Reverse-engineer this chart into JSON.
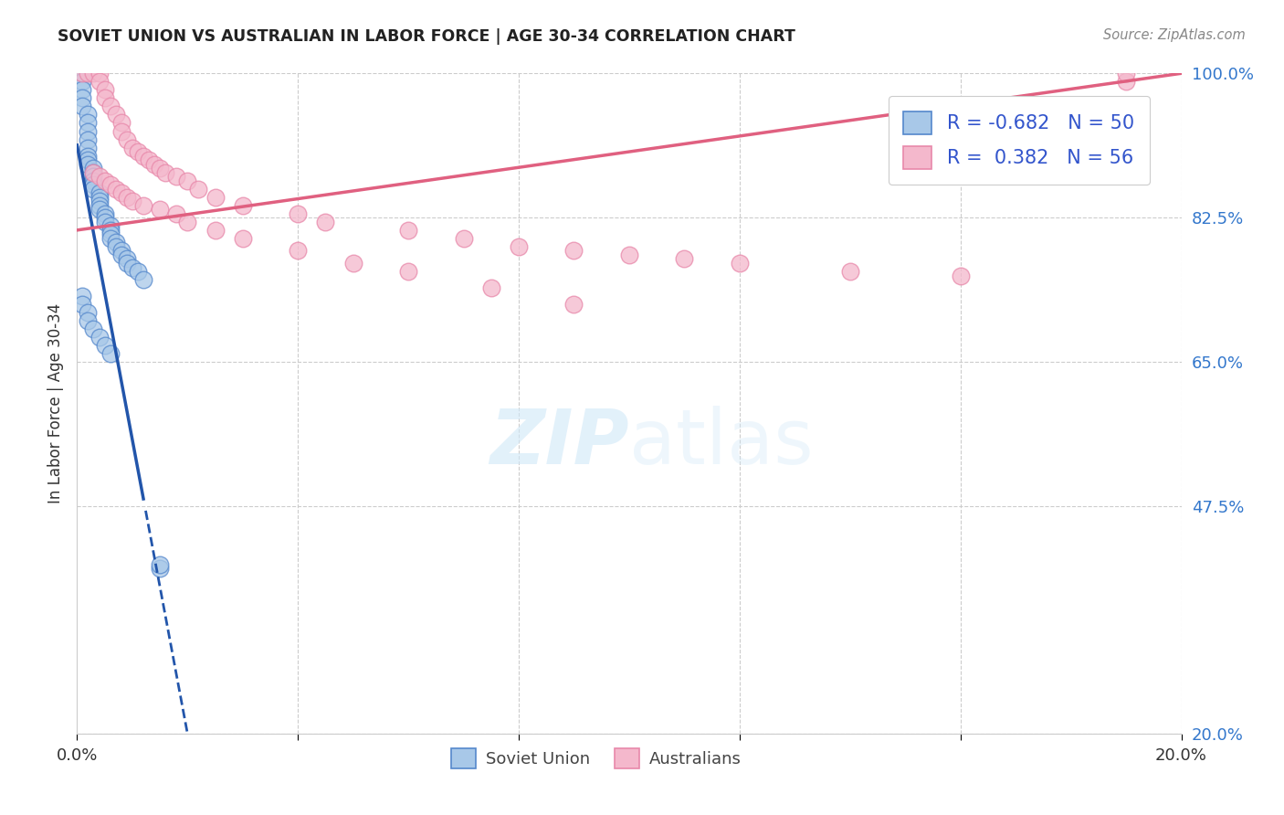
{
  "title": "SOVIET UNION VS AUSTRALIAN IN LABOR FORCE | AGE 30-34 CORRELATION CHART",
  "source": "Source: ZipAtlas.com",
  "ylabel": "In Labor Force | Age 30-34",
  "xlim": [
    0.0,
    0.2
  ],
  "ylim": [
    0.2,
    1.0
  ],
  "xtick_positions": [
    0.0,
    0.04,
    0.08,
    0.12,
    0.16,
    0.2
  ],
  "xtick_labels": [
    "0.0%",
    "",
    "",
    "",
    "",
    "20.0%"
  ],
  "ytick_right_vals": [
    1.0,
    0.825,
    0.65,
    0.475,
    0.2
  ],
  "ytick_right_labels": [
    "100.0%",
    "82.5%",
    "65.0%",
    "47.5%",
    "20.0%"
  ],
  "grid_color": "#cccccc",
  "background_color": "#ffffff",
  "soviet_color": "#a8c8e8",
  "australian_color": "#f4b8cc",
  "soviet_edge_color": "#5588cc",
  "australian_edge_color": "#e888aa",
  "trend_soviet_color": "#2255aa",
  "trend_australian_color": "#e06080",
  "legend_r_soviet": "-0.682",
  "legend_n_soviet": "50",
  "legend_r_australian": "0.382",
  "legend_n_australian": "56",
  "legend_text_color": "#3355cc",
  "watermark_color": "#d0e8f8",
  "soviet_x": [
    0.001,
    0.001,
    0.001,
    0.001,
    0.001,
    0.002,
    0.002,
    0.002,
    0.002,
    0.002,
    0.002,
    0.002,
    0.002,
    0.003,
    0.003,
    0.003,
    0.003,
    0.003,
    0.003,
    0.004,
    0.004,
    0.004,
    0.004,
    0.004,
    0.005,
    0.005,
    0.005,
    0.006,
    0.006,
    0.006,
    0.006,
    0.007,
    0.007,
    0.008,
    0.008,
    0.009,
    0.009,
    0.01,
    0.011,
    0.012,
    0.001,
    0.001,
    0.002,
    0.002,
    0.003,
    0.004,
    0.005,
    0.006,
    0.015,
    0.015
  ],
  "soviet_y": [
    1.0,
    0.99,
    0.98,
    0.97,
    0.96,
    0.95,
    0.94,
    0.93,
    0.92,
    0.91,
    0.9,
    0.895,
    0.89,
    0.885,
    0.88,
    0.875,
    0.87,
    0.865,
    0.86,
    0.855,
    0.85,
    0.845,
    0.84,
    0.835,
    0.83,
    0.825,
    0.82,
    0.815,
    0.81,
    0.805,
    0.8,
    0.795,
    0.79,
    0.785,
    0.78,
    0.775,
    0.77,
    0.765,
    0.76,
    0.75,
    0.73,
    0.72,
    0.71,
    0.7,
    0.69,
    0.68,
    0.67,
    0.66,
    0.4,
    0.405
  ],
  "australian_x": [
    0.001,
    0.002,
    0.003,
    0.004,
    0.004,
    0.005,
    0.005,
    0.006,
    0.007,
    0.008,
    0.008,
    0.009,
    0.01,
    0.011,
    0.012,
    0.013,
    0.014,
    0.015,
    0.016,
    0.018,
    0.02,
    0.022,
    0.025,
    0.03,
    0.04,
    0.045,
    0.06,
    0.07,
    0.08,
    0.09,
    0.1,
    0.11,
    0.12,
    0.14,
    0.16,
    0.19,
    0.003,
    0.004,
    0.005,
    0.006,
    0.007,
    0.008,
    0.009,
    0.01,
    0.012,
    0.015,
    0.018,
    0.02,
    0.025,
    0.03,
    0.04,
    0.05,
    0.06,
    0.075,
    0.09,
    0.19
  ],
  "australian_y": [
    1.0,
    1.0,
    1.0,
    1.0,
    0.99,
    0.98,
    0.97,
    0.96,
    0.95,
    0.94,
    0.93,
    0.92,
    0.91,
    0.905,
    0.9,
    0.895,
    0.89,
    0.885,
    0.88,
    0.875,
    0.87,
    0.86,
    0.85,
    0.84,
    0.83,
    0.82,
    0.81,
    0.8,
    0.79,
    0.785,
    0.78,
    0.775,
    0.77,
    0.76,
    0.755,
    0.99,
    0.88,
    0.875,
    0.87,
    0.865,
    0.86,
    0.855,
    0.85,
    0.845,
    0.84,
    0.835,
    0.83,
    0.82,
    0.81,
    0.8,
    0.785,
    0.77,
    0.76,
    0.74,
    0.72,
    1.0
  ]
}
